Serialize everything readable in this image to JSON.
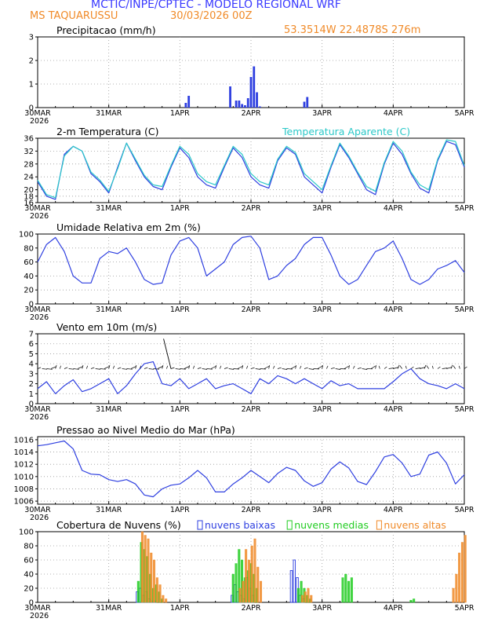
{
  "header": {
    "title": "MCTIC/INPE/CPTEC - MODELO REGIONAL WRF",
    "location": "MS TAQUARUSSU",
    "run": "30/03/2026 00Z",
    "coords": "53.3514W 22.4878S 276m"
  },
  "colors": {
    "title": "#3a3aff",
    "orange": "#f08a28",
    "blue": "#2e3fe0",
    "cyan": "#2ac8c8",
    "green": "#22cc22",
    "grid": "#9a9a9a"
  },
  "x_axis": {
    "ticks": [
      "30MAR",
      "31MAR",
      "1APR",
      "2APR",
      "3APR",
      "4APR",
      "5APR"
    ],
    "year": "2026",
    "hours_total": 144
  },
  "chart_data": [
    {
      "id": "precip",
      "type": "bar",
      "title": "Precipitacao (mm/h)",
      "ylim": [
        0,
        3
      ],
      "yticks": [
        "0",
        "1",
        "2",
        "3"
      ],
      "x_hours": [
        50,
        51,
        65,
        67,
        68,
        69,
        70,
        71,
        72,
        73,
        74,
        75,
        90,
        91
      ],
      "values": [
        0.2,
        0.5,
        0.9,
        0.3,
        0.3,
        0.15,
        0.1,
        0.4,
        1.3,
        1.75,
        0.65,
        0.05,
        0.25,
        0.45
      ]
    },
    {
      "id": "temp",
      "type": "line",
      "title": "2-m Temperatura (C)",
      "legend": "Temperatura Aparente (C)",
      "ylim": [
        16,
        36
      ],
      "yticks": [
        "16",
        "18",
        "20",
        "24",
        "28",
        "32",
        "36"
      ],
      "series": [
        {
          "name": "2-m Temperatura (C)",
          "color": "blue",
          "x": [
            0,
            3,
            6,
            9,
            12,
            15,
            18,
            21,
            24,
            27,
            30,
            33,
            36,
            39,
            42,
            45,
            48,
            51,
            54,
            57,
            60,
            63,
            66,
            69,
            72,
            75,
            78,
            81,
            84,
            87,
            90,
            93,
            96,
            99,
            102,
            105,
            108,
            111,
            114,
            117,
            120,
            123,
            126,
            129,
            132,
            135,
            138,
            141,
            144
          ],
          "y": [
            22.5,
            18,
            17,
            31,
            33.5,
            32,
            25,
            22.5,
            19,
            27,
            34.5,
            29,
            24,
            21,
            20,
            27,
            33,
            30,
            24,
            21.5,
            20.5,
            27,
            33,
            30,
            24,
            21.5,
            20.5,
            29,
            33,
            31,
            24,
            21.5,
            19,
            27,
            34,
            30,
            25,
            20,
            18.5,
            28,
            34.5,
            31,
            25,
            20.5,
            19,
            29,
            35,
            34,
            27
          ]
        },
        {
          "name": "Temperatura Aparente (C)",
          "color": "cyan",
          "x": [
            0,
            3,
            6,
            9,
            12,
            15,
            18,
            21,
            24,
            27,
            30,
            33,
            36,
            39,
            42,
            45,
            48,
            51,
            54,
            57,
            60,
            63,
            66,
            69,
            72,
            75,
            78,
            81,
            84,
            87,
            90,
            93,
            96,
            99,
            102,
            105,
            108,
            111,
            114,
            117,
            120,
            123,
            126,
            129,
            132,
            135,
            138,
            141,
            144
          ],
          "y": [
            23,
            18.5,
            17.5,
            30.5,
            33.5,
            32,
            25.5,
            23,
            19.5,
            26.5,
            34.5,
            29.5,
            24.5,
            21.5,
            21,
            27.5,
            33.5,
            31,
            25,
            22.5,
            21.5,
            27.5,
            33.5,
            31,
            25,
            22.5,
            21.5,
            29.5,
            33.5,
            31.5,
            25,
            22.5,
            20,
            27.5,
            34.5,
            30.5,
            25.5,
            21,
            19.5,
            28.5,
            35,
            32,
            25.5,
            21.5,
            20,
            29.5,
            35.5,
            35,
            27.5
          ]
        }
      ]
    },
    {
      "id": "rh",
      "type": "line",
      "title": "Umidade Relativa em 2m (%)",
      "ylim": [
        0,
        100
      ],
      "yticks": [
        "0",
        "20",
        "40",
        "60",
        "80",
        "100"
      ],
      "series": [
        {
          "name": "Umidade Relativa em 2m (%)",
          "color": "blue",
          "x": [
            0,
            3,
            6,
            9,
            12,
            15,
            18,
            21,
            24,
            27,
            30,
            33,
            36,
            39,
            42,
            45,
            48,
            51,
            54,
            57,
            60,
            63,
            66,
            69,
            72,
            75,
            78,
            81,
            84,
            87,
            90,
            93,
            96,
            99,
            102,
            105,
            108,
            111,
            114,
            117,
            120,
            123,
            126,
            129,
            132,
            135,
            138,
            141,
            144
          ],
          "y": [
            60,
            85,
            95,
            75,
            40,
            30,
            30,
            65,
            75,
            72,
            80,
            60,
            35,
            28,
            30,
            70,
            90,
            95,
            80,
            40,
            50,
            60,
            85,
            95,
            97,
            80,
            35,
            40,
            55,
            65,
            85,
            95,
            95,
            70,
            40,
            28,
            35,
            55,
            75,
            80,
            90,
            65,
            35,
            28,
            35,
            50,
            55,
            62,
            45
          ]
        }
      ]
    },
    {
      "id": "wind",
      "type": "line",
      "title": "Vento em 10m (m/s)",
      "ylim": [
        0,
        7
      ],
      "yticks": [
        "0",
        "1",
        "2",
        "3",
        "4",
        "5",
        "6",
        "7"
      ],
      "series": [
        {
          "name": "Vento em 10m (m/s)",
          "color": "blue",
          "x": [
            0,
            3,
            6,
            9,
            12,
            15,
            18,
            21,
            24,
            27,
            30,
            33,
            36,
            39,
            42,
            45,
            48,
            51,
            54,
            57,
            60,
            63,
            66,
            69,
            72,
            75,
            78,
            81,
            84,
            87,
            90,
            93,
            96,
            99,
            102,
            105,
            108,
            111,
            114,
            117,
            120,
            123,
            126,
            129,
            132,
            135,
            138,
            141,
            144
          ],
          "y": [
            1.5,
            2.2,
            1.0,
            1.8,
            2.4,
            1.2,
            1.5,
            2.0,
            2.5,
            1.0,
            1.8,
            3.0,
            4.0,
            4.2,
            2.0,
            1.8,
            2.5,
            1.5,
            2.0,
            2.5,
            1.5,
            1.8,
            2.0,
            1.5,
            1.0,
            2.5,
            2.0,
            2.8,
            2.5,
            2.0,
            2.5,
            2.0,
            1.5,
            2.3,
            1.8,
            2.0,
            1.5,
            1.5,
            1.5,
            1.5,
            2.2,
            3.0,
            3.5,
            2.5,
            2.0,
            1.8,
            1.5,
            2.0,
            1.5
          ]
        }
      ],
      "vectors": "wind barb arrows along the 3.5 m/s line"
    },
    {
      "id": "pressure",
      "type": "line",
      "title": "Pressao ao Nivel Medio do Mar (hPa)",
      "ylim": [
        1005.5,
        1016.5
      ],
      "yticks": [
        "1006",
        "1008",
        "1010",
        "1012",
        "1014",
        "1016"
      ],
      "series": [
        {
          "name": "Pressao ao Nivel Medio do Mar (hPa)",
          "color": "blue",
          "x": [
            0,
            3,
            6,
            9,
            12,
            15,
            18,
            21,
            24,
            27,
            30,
            33,
            36,
            39,
            42,
            45,
            48,
            51,
            54,
            57,
            60,
            63,
            66,
            69,
            72,
            75,
            78,
            81,
            84,
            87,
            90,
            93,
            96,
            99,
            102,
            105,
            108,
            111,
            114,
            117,
            120,
            123,
            126,
            129,
            132,
            135,
            138,
            141,
            144
          ],
          "y": [
            1015,
            1015.2,
            1015.5,
            1015.8,
            1014.5,
            1011,
            1010.4,
            1010.3,
            1009.5,
            1009.2,
            1009.5,
            1008.8,
            1007,
            1006.7,
            1008,
            1008.6,
            1008.8,
            1009.8,
            1011,
            1009.8,
            1007.5,
            1007.5,
            1008.8,
            1009.8,
            1011,
            1010,
            1009,
            1010.5,
            1011.5,
            1011,
            1009.3,
            1008.4,
            1009,
            1011.2,
            1012.4,
            1011.4,
            1009.2,
            1008.7,
            1010.8,
            1013.2,
            1013.6,
            1012.2,
            1010,
            1010.4,
            1013.5,
            1014,
            1012.2,
            1008.8,
            1010.3
          ]
        }
      ]
    },
    {
      "id": "clouds",
      "type": "bar",
      "title": "Cobertura de Nuvens (%)",
      "ylim": [
        0,
        100
      ],
      "yticks": [
        "0",
        "20",
        "40",
        "60",
        "80",
        "100"
      ],
      "series": [
        {
          "name": "nuvens baixas",
          "color": "blue",
          "x": [
            34,
            35,
            36,
            37,
            38,
            39,
            40,
            41,
            66,
            67,
            68,
            69,
            70,
            71,
            72,
            73,
            86,
            87,
            88,
            89,
            90
          ],
          "values": [
            15,
            20,
            10,
            15,
            5,
            2,
            2,
            0,
            10,
            25,
            15,
            10,
            5,
            35,
            20,
            10,
            45,
            60,
            35,
            10,
            5
          ]
        },
        {
          "name": "nuvens medias",
          "color": "green",
          "x": [
            34,
            35,
            36,
            37,
            38,
            39,
            40,
            41,
            42,
            66,
            67,
            68,
            69,
            70,
            71,
            72,
            73,
            74,
            88,
            89,
            90,
            91,
            92,
            103,
            104,
            105,
            106,
            126,
            127
          ],
          "values": [
            30,
            85,
            75,
            65,
            40,
            20,
            25,
            15,
            5,
            40,
            55,
            75,
            60,
            35,
            45,
            55,
            40,
            20,
            20,
            30,
            20,
            10,
            5,
            35,
            40,
            30,
            35,
            3,
            5
          ]
        },
        {
          "name": "nuvens altas",
          "color": "orange",
          "x": [
            35,
            36,
            37,
            38,
            39,
            40,
            41,
            42,
            43,
            68,
            69,
            70,
            71,
            72,
            73,
            74,
            75,
            89,
            90,
            91,
            92,
            140,
            141,
            142,
            143,
            144
          ],
          "values": [
            100,
            95,
            90,
            70,
            60,
            35,
            25,
            10,
            5,
            20,
            30,
            75,
            60,
            80,
            90,
            50,
            30,
            10,
            15,
            20,
            10,
            20,
            40,
            70,
            85,
            95
          ]
        }
      ]
    }
  ]
}
